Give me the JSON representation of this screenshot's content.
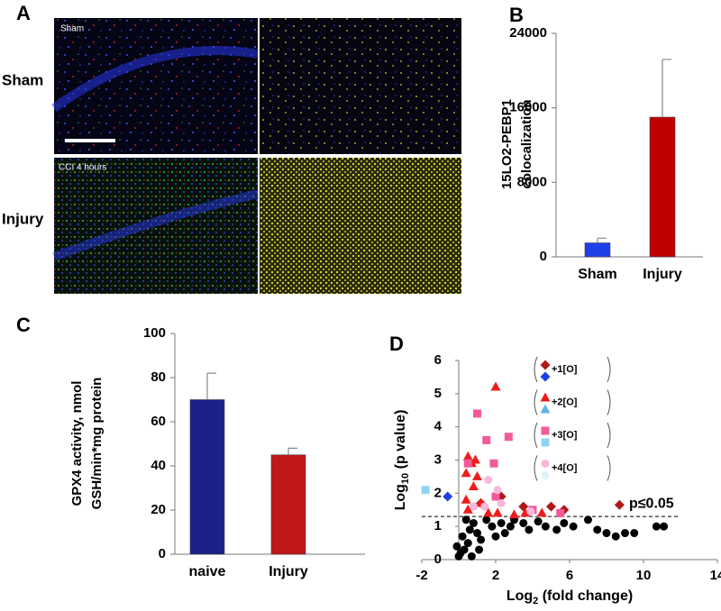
{
  "chart_data": [
    {
      "type": "image",
      "panel_label": "A",
      "row_labels": [
        "Sham",
        "Injury"
      ],
      "image_labels": [
        "Sham",
        "CCI 4 hours"
      ]
    },
    {
      "type": "bar",
      "panel_label": "B",
      "ylabel": [
        "15LO2-PEBP1",
        "colocalization"
      ],
      "categories": [
        "Sham",
        "Injury"
      ],
      "values": [
        1500,
        15000
      ],
      "errors": [
        500,
        6200
      ],
      "colors": [
        "#1f3fe6",
        "#c00000"
      ],
      "ylim": [
        0,
        24000
      ],
      "yticks": [
        0,
        8000,
        16000,
        24000
      ]
    },
    {
      "type": "bar",
      "panel_label": "C",
      "ylabel": [
        "GPX4 activity, nmol",
        "GSH/min*mg protein"
      ],
      "categories": [
        "naive",
        "Injury"
      ],
      "values": [
        70,
        45
      ],
      "errors": [
        12,
        3
      ],
      "colors": [
        "#1b1f8a",
        "#c0171b"
      ],
      "ylim": [
        0,
        100
      ],
      "yticks": [
        0,
        20,
        40,
        60,
        80,
        100
      ]
    },
    {
      "type": "scatter",
      "panel_label": "D",
      "xlabel": [
        "Log",
        "2",
        " (fold change)"
      ],
      "ylabel": [
        "Log",
        "10",
        " (p value)"
      ],
      "xlim": [
        -2,
        14
      ],
      "xticks": [
        -2,
        2,
        6,
        10,
        14
      ],
      "ylim": [
        0,
        6
      ],
      "yticks": [
        0,
        1,
        2,
        3,
        4,
        5,
        6
      ],
      "threshold": {
        "value": 1.3,
        "label": "p≤0.05"
      },
      "series": [
        {
          "marker": "circle",
          "color": "#000000",
          "x": [
            0,
            0.3,
            0.2,
            0.5,
            0.6,
            0.8,
            0.4,
            1,
            1.2,
            1.5,
            1.8,
            2,
            2.3,
            2.8,
            3,
            3.5,
            3.8,
            4.3,
            4.7,
            5.3,
            5.7,
            6.2,
            7,
            7.5,
            8,
            8.5,
            9,
            9.5,
            10.7,
            11.1,
            0.1,
            0.7,
            -0.1,
            1.1,
            2.5
          ],
          "values": [
            0.1,
            0.3,
            0.7,
            0.5,
            0.9,
            1.1,
            1.2,
            0.8,
            0.6,
            1.2,
            1,
            0.7,
            1.1,
            1,
            1.2,
            1.1,
            0.9,
            1.15,
            1,
            0.9,
            1.1,
            1,
            1.2,
            0.9,
            0.8,
            0.7,
            0.8,
            0.8,
            1,
            1,
            0.2,
            0.1,
            0.4,
            0.3,
            0.8
          ]
        },
        {
          "name": "+1[O]",
          "marker": "diamond",
          "color": "#b01818",
          "x": [
            8.7,
            5.7,
            3.5,
            1.2,
            2.3,
            5
          ],
          "values": [
            1.65,
            1.5,
            1.6,
            1.7,
            1.9,
            1.6
          ]
        },
        {
          "marker": "diamond",
          "color": "#1f3fe6",
          "x": [
            -0.6
          ],
          "values": [
            1.9
          ]
        },
        {
          "name": "+2[O]",
          "marker": "triangle",
          "color": "#ee1c1c",
          "x": [
            2,
            0.5,
            0.7,
            0.4,
            1,
            0.8,
            0.4,
            0.5,
            1.6,
            2.1,
            1.2,
            3,
            3.6,
            4.5,
            0.9
          ],
          "values": [
            5.2,
            3.1,
            2.9,
            2.6,
            2.5,
            2.2,
            1.8,
            1.5,
            1.4,
            1.4,
            1.7,
            1.35,
            1.4,
            1.4,
            3
          ]
        },
        {
          "marker": "triangle",
          "color": "#5fb4e8",
          "x": [],
          "values": []
        },
        {
          "name": "+3[O]",
          "marker": "square",
          "color": "#f25a9a",
          "x": [
            1,
            1.5,
            2.7,
            0.5,
            1.9,
            2,
            5.5,
            4
          ],
          "values": [
            4.4,
            3.6,
            3.7,
            2.9,
            2.9,
            1.9,
            1.4,
            1.5
          ]
        },
        {
          "marker": "square",
          "color": "#8fd3f4",
          "x": [
            -1.8
          ],
          "values": [
            2.1
          ]
        },
        {
          "name": "+4[O]",
          "marker": "circle",
          "color": "#f7b8dc",
          "x": [
            1.6,
            2.1,
            2.3,
            3.9,
            0.8,
            1.4
          ],
          "values": [
            2.4,
            2.1,
            1.7,
            1.45,
            1.6,
            1.6
          ]
        },
        {
          "marker": "circle",
          "color": "#dff1fb",
          "x": [],
          "values": []
        }
      ]
    }
  ]
}
